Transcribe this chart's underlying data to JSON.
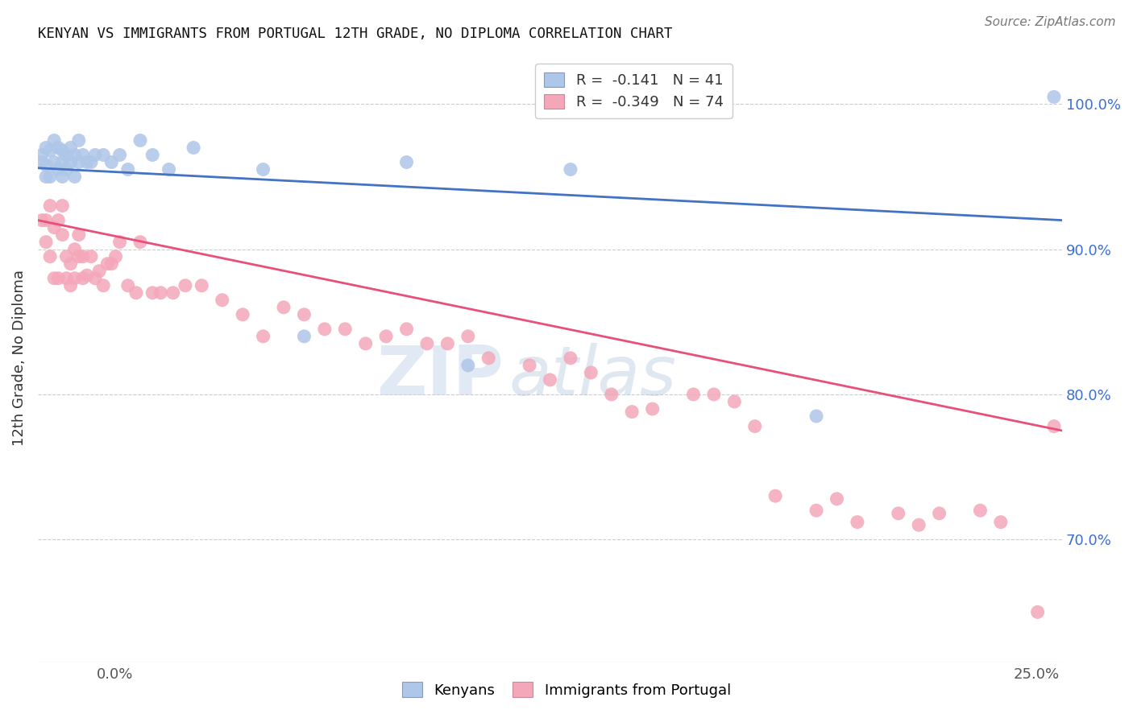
{
  "title": "KENYAN VS IMMIGRANTS FROM PORTUGAL 12TH GRADE, NO DIPLOMA CORRELATION CHART",
  "source": "Source: ZipAtlas.com",
  "ylabel": "12th Grade, No Diploma",
  "xmin": 0.0,
  "xmax": 0.25,
  "ymin": 0.615,
  "ymax": 1.035,
  "yticks": [
    0.7,
    0.8,
    0.9,
    1.0
  ],
  "ytick_labels": [
    "70.0%",
    "80.0%",
    "90.0%",
    "100.0%"
  ],
  "xtick_left": "0.0%",
  "xtick_right": "25.0%",
  "kenyan_color": "#aec6e8",
  "portugal_color": "#f4a7b9",
  "kenyan_line_color": "#4472c4",
  "portugal_line_color": "#e8507a",
  "watermark_zip": "ZIP",
  "watermark_atlas": "atlas",
  "legend_kenyan": "R =  -0.141   N = 41",
  "legend_portugal": "R =  -0.349   N = 74",
  "kenyan_line_x": [
    0.0,
    0.25
  ],
  "kenyan_line_y": [
    0.956,
    0.92
  ],
  "portugal_line_x": [
    0.0,
    0.25
  ],
  "portugal_line_y": [
    0.92,
    0.775
  ],
  "kenyan_x": [
    0.001,
    0.001,
    0.002,
    0.002,
    0.002,
    0.003,
    0.003,
    0.004,
    0.004,
    0.005,
    0.005,
    0.006,
    0.006,
    0.006,
    0.007,
    0.007,
    0.008,
    0.008,
    0.009,
    0.009,
    0.01,
    0.01,
    0.011,
    0.012,
    0.013,
    0.014,
    0.016,
    0.018,
    0.02,
    0.022,
    0.025,
    0.028,
    0.032,
    0.038,
    0.055,
    0.065,
    0.09,
    0.105,
    0.13,
    0.19,
    0.248
  ],
  "kenyan_y": [
    0.96,
    0.965,
    0.95,
    0.958,
    0.97,
    0.95,
    0.968,
    0.96,
    0.975,
    0.955,
    0.97,
    0.95,
    0.96,
    0.968,
    0.955,
    0.965,
    0.96,
    0.97,
    0.95,
    0.965,
    0.96,
    0.975,
    0.965,
    0.96,
    0.96,
    0.965,
    0.965,
    0.96,
    0.965,
    0.955,
    0.975,
    0.965,
    0.955,
    0.97,
    0.955,
    0.84,
    0.96,
    0.82,
    0.955,
    0.785,
    1.005
  ],
  "portugal_x": [
    0.001,
    0.002,
    0.002,
    0.003,
    0.003,
    0.004,
    0.004,
    0.005,
    0.005,
    0.006,
    0.006,
    0.007,
    0.007,
    0.008,
    0.008,
    0.009,
    0.009,
    0.01,
    0.01,
    0.011,
    0.011,
    0.012,
    0.013,
    0.014,
    0.015,
    0.016,
    0.017,
    0.018,
    0.019,
    0.02,
    0.022,
    0.024,
    0.025,
    0.028,
    0.03,
    0.033,
    0.036,
    0.04,
    0.045,
    0.05,
    0.055,
    0.06,
    0.065,
    0.07,
    0.075,
    0.08,
    0.085,
    0.09,
    0.095,
    0.1,
    0.105,
    0.11,
    0.12,
    0.125,
    0.13,
    0.135,
    0.14,
    0.145,
    0.15,
    0.16,
    0.165,
    0.17,
    0.175,
    0.18,
    0.19,
    0.195,
    0.2,
    0.21,
    0.215,
    0.22,
    0.23,
    0.235,
    0.244,
    0.248
  ],
  "portugal_y": [
    0.92,
    0.905,
    0.92,
    0.895,
    0.93,
    0.88,
    0.915,
    0.88,
    0.92,
    0.91,
    0.93,
    0.88,
    0.895,
    0.875,
    0.89,
    0.88,
    0.9,
    0.895,
    0.91,
    0.88,
    0.895,
    0.882,
    0.895,
    0.88,
    0.885,
    0.875,
    0.89,
    0.89,
    0.895,
    0.905,
    0.875,
    0.87,
    0.905,
    0.87,
    0.87,
    0.87,
    0.875,
    0.875,
    0.865,
    0.855,
    0.84,
    0.86,
    0.855,
    0.845,
    0.845,
    0.835,
    0.84,
    0.845,
    0.835,
    0.835,
    0.84,
    0.825,
    0.82,
    0.81,
    0.825,
    0.815,
    0.8,
    0.788,
    0.79,
    0.8,
    0.8,
    0.795,
    0.778,
    0.73,
    0.72,
    0.728,
    0.712,
    0.718,
    0.71,
    0.718,
    0.72,
    0.712,
    0.65,
    0.778
  ]
}
